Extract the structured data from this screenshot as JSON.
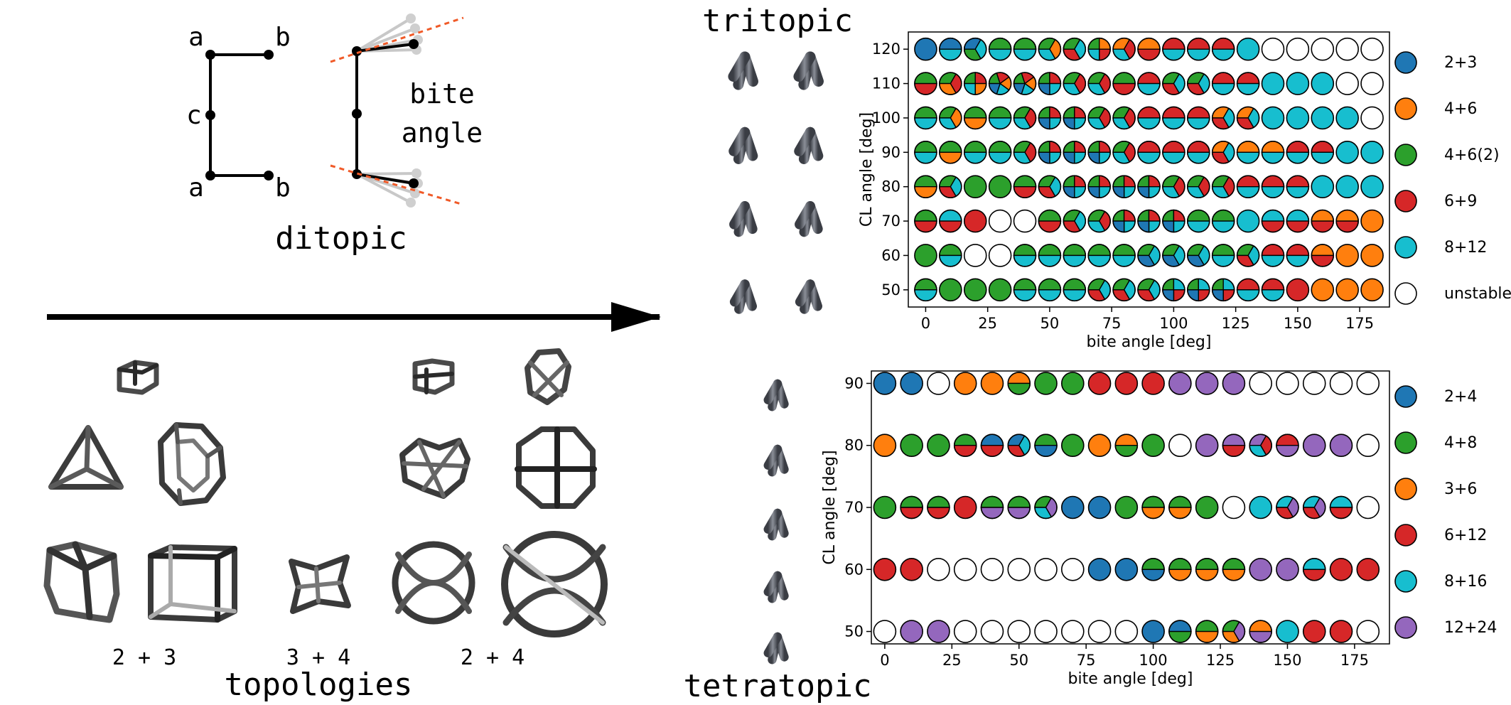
{
  "ditopic": {
    "labels": {
      "a_top": "a",
      "b_top": "b",
      "c": "c",
      "a_bottom": "a",
      "b_bottom": "b"
    },
    "bite_line1": "bite",
    "bite_line2": "angle",
    "title": "ditopic"
  },
  "sections": {
    "tritopic": "tritopic",
    "tetratopic": "tetratopic",
    "topologies": "topologies"
  },
  "topology_groups": [
    "2 + 3",
    "3 + 4",
    "2 + 4"
  ],
  "colors": {
    "blue": "#1f77b4",
    "orange": "#ff7f0e",
    "green": "#2ca02c",
    "red": "#d62728",
    "cyan": "#17becf",
    "purple": "#9467bd",
    "white": "#ffffff",
    "accent_orange": "#f0861a",
    "accent_teal": "#1a6c8c",
    "dash": "#f05a28"
  },
  "chart_data": [
    {
      "type": "pie-matrix",
      "xlabel": "bite angle [deg]",
      "ylabel": "CL angle [deg]",
      "x": [
        0,
        10,
        20,
        30,
        40,
        50,
        60,
        70,
        80,
        90,
        100,
        110,
        120,
        130,
        140,
        150,
        160,
        170,
        180
      ],
      "y": [
        120,
        110,
        100,
        90,
        80,
        70,
        60,
        50
      ],
      "xticks": [
        0,
        25,
        50,
        75,
        100,
        125,
        150,
        175
      ],
      "yticks": [
        120,
        110,
        100,
        90,
        80,
        70,
        60,
        50
      ],
      "legend": [
        {
          "label": "2+3",
          "key": "B"
        },
        {
          "label": "4+6",
          "key": "O"
        },
        {
          "label": "4+6(2)",
          "key": "G"
        },
        {
          "label": "6+9",
          "key": "R"
        },
        {
          "label": "8+12",
          "key": "C"
        },
        {
          "label": "unstable",
          "key": "W"
        }
      ],
      "cells": [
        [
          "B",
          "BC",
          "BCG",
          "GC",
          "GC",
          "GOC",
          "GCR",
          "GORC",
          "ORC",
          "OR",
          "RC",
          "RC",
          "RC",
          "C",
          "W",
          "W",
          "W",
          "W",
          "W"
        ],
        [
          "GR",
          "GRO",
          "GROC",
          "GROCB",
          "GROCB",
          "GRCB",
          "GRC",
          "GRC",
          "GR",
          "RC",
          "GCR",
          "GCR",
          "RC",
          "RC",
          "C",
          "C",
          "C",
          "W",
          "W"
        ],
        [
          "GC",
          "GOC",
          "GO",
          "GC",
          "GRC",
          "GRCB",
          "GRCB",
          "GRC",
          "GRC",
          "RC",
          "RC",
          "RC",
          "OCR",
          "OCR",
          "C",
          "C",
          "C",
          "C",
          "W"
        ],
        [
          "GC",
          "GO",
          "GC",
          "GC",
          "GRC",
          "GRCB",
          "GRCB",
          "GRCB",
          "GRC",
          "RC",
          "RC",
          "RC",
          "OCR",
          "OC",
          "OC",
          "RC",
          "RC",
          "C",
          "C"
        ],
        [
          "GO",
          "GCR",
          "G",
          "G",
          "GR",
          "GCR",
          "GRCB",
          "GRCB",
          "GRCB",
          "GRCB",
          "GRC",
          "GRC",
          "GRC",
          "RC",
          "RC",
          "RC",
          "C",
          "C",
          "C"
        ],
        [
          "GR",
          "CR",
          "R",
          "W",
          "W",
          "GR",
          "GCR",
          "GRC",
          "GRCB",
          "GRCB",
          "GRCB",
          "GC",
          "GC",
          "C",
          "CR",
          "CR",
          "OR",
          "OR",
          "O"
        ],
        [
          "G",
          "GC",
          "W",
          "W",
          "GC",
          "GC",
          "GC",
          "GC",
          "GC",
          "GCB",
          "GCB",
          "GCB",
          "GC",
          "GCR",
          "RC",
          "RC",
          "OR",
          "O",
          "O"
        ],
        [
          "GC",
          "G",
          "G",
          "G",
          "GC",
          "GC",
          "GC",
          "GCR",
          "GCR",
          "GCR",
          "GCRB",
          "GCRB",
          "GCRB",
          "RC",
          "RC",
          "R",
          "O",
          "O",
          "O"
        ]
      ]
    },
    {
      "type": "pie-matrix",
      "xlabel": "bite angle [deg]",
      "ylabel": "CL angle [deg]",
      "x": [
        0,
        10,
        20,
        30,
        40,
        50,
        60,
        70,
        80,
        90,
        100,
        110,
        120,
        130,
        140,
        150,
        160,
        170,
        180
      ],
      "y": [
        90,
        80,
        70,
        60,
        50
      ],
      "xticks": [
        0,
        25,
        50,
        75,
        100,
        125,
        150,
        175
      ],
      "yticks": [
        90,
        80,
        70,
        60,
        50
      ],
      "legend": [
        {
          "label": "2+4",
          "key": "B"
        },
        {
          "label": "4+8",
          "key": "G"
        },
        {
          "label": "3+6",
          "key": "O"
        },
        {
          "label": "6+12",
          "key": "R"
        },
        {
          "label": "8+16",
          "key": "C"
        },
        {
          "label": "12+24",
          "key": "P"
        }
      ],
      "cells": [
        [
          "B",
          "B",
          "W",
          "O",
          "O",
          "OG",
          "G",
          "G",
          "R",
          "R",
          "R",
          "P",
          "P",
          "P",
          "W",
          "W",
          "W",
          "W",
          "W"
        ],
        [
          "O",
          "G",
          "G",
          "GR",
          "BR",
          "BCR",
          "GB",
          "G",
          "O",
          "OG",
          "G",
          "W",
          "P",
          "PR",
          "PRC",
          "RP",
          "P",
          "P",
          "W"
        ],
        [
          "G",
          "GR",
          "GR",
          "R",
          "GP",
          "GP",
          "GPC",
          "B",
          "B",
          "G",
          "GO",
          "GO",
          "G",
          "W",
          "C",
          "CPR",
          "CPR",
          "CR",
          "W"
        ],
        [
          "R",
          "R",
          "W",
          "W",
          "W",
          "W",
          "W",
          "W",
          "B",
          "B",
          "GB",
          "GO",
          "GO",
          "GO",
          "P",
          "P",
          "CR",
          "R",
          "R"
        ],
        [
          "W",
          "P",
          "P",
          "W",
          "W",
          "W",
          "W",
          "W",
          "W",
          "W",
          "B",
          "BG",
          "GO",
          "GPO",
          "OP",
          "C",
          "R",
          "R",
          "W"
        ]
      ]
    }
  ]
}
